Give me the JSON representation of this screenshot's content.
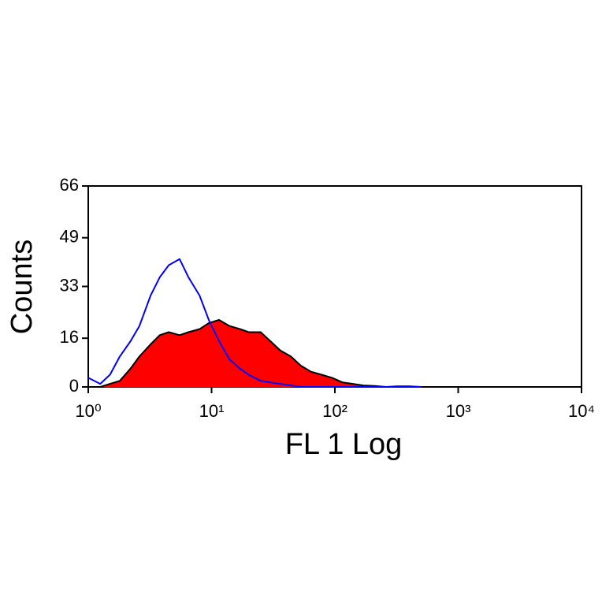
{
  "chart_data": {
    "type": "histogram",
    "xlabel": "FL 1 Log",
    "ylabel": "Counts",
    "log_x": true,
    "xlim": [
      1,
      10000
    ],
    "xticks": [
      {
        "value": 1,
        "label": "10⁰"
      },
      {
        "value": 10,
        "label": "10¹"
      },
      {
        "value": 100,
        "label": "10²"
      },
      {
        "value": 1000,
        "label": "10³"
      },
      {
        "value": 10000,
        "label": "10⁴"
      }
    ],
    "ylim": [
      0,
      66
    ],
    "yticks": [
      0,
      16,
      33,
      49,
      66
    ],
    "x": [
      1,
      1.25,
      1.5,
      1.8,
      2.2,
      2.6,
      3.2,
      3.8,
      4.5,
      5.5,
      6.5,
      8,
      9.5,
      11.5,
      14,
      17,
      20,
      25,
      30,
      36,
      44,
      53,
      64,
      78,
      95,
      115,
      140,
      170,
      210,
      260,
      320,
      400,
      500
    ],
    "series": [
      {
        "color": "#ff0000",
        "edge_color": "#000000",
        "filled": true,
        "values": [
          0,
          0,
          1,
          2,
          6,
          10,
          14,
          17,
          18,
          17,
          18,
          19,
          21,
          22,
          20,
          19,
          18,
          18,
          15,
          12,
          10,
          7,
          5,
          4,
          3,
          1.5,
          1,
          0.5,
          0.3,
          0,
          0.2,
          0.2,
          0
        ]
      },
      {
        "color": "#0000ff",
        "filled": false,
        "values": [
          3,
          1,
          4,
          10,
          15,
          20,
          30,
          36,
          40,
          42,
          36,
          30,
          22,
          15,
          9,
          6,
          4,
          2,
          1.5,
          1,
          0.5,
          0,
          0,
          0,
          0,
          0,
          0,
          0,
          0,
          0,
          0,
          0,
          0
        ]
      }
    ]
  }
}
